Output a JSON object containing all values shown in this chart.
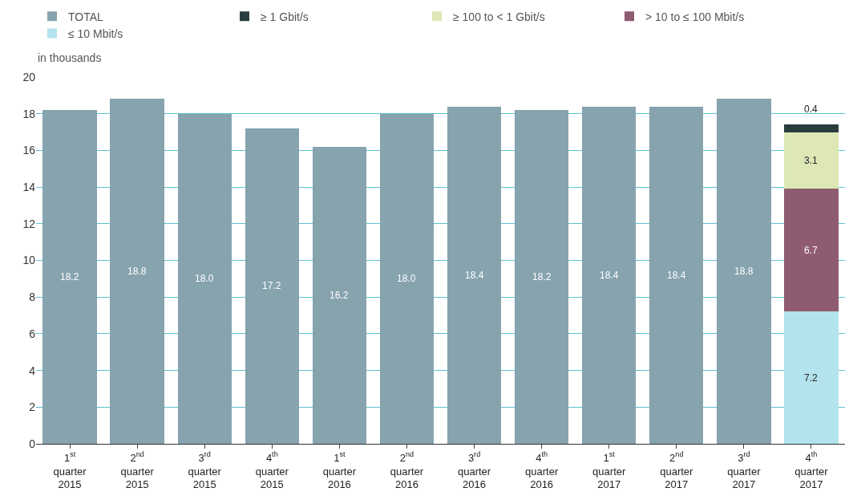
{
  "chart_data": {
    "type": "bar",
    "stacked": true,
    "ylabel": "in thousands",
    "categories": [
      "1$^{st}$\nquarter\n2015",
      "2$^{nd}$\nquarter\n2015",
      "3$^{rd}$\nquarter\n2015",
      "4$^{th}$\nquarter\n2015",
      "1$^{st}$\nquarter\n2016",
      "2$^{nd}$\nquarter\n2016",
      "3$^{rd}$\nquarter\n2016",
      "4$^{th}$\nquarter\n2016",
      "1$^{st}$\nquarter\n2017",
      "2$^{nd}$\nquarter\n2017",
      "3$^{rd}$\nquarter\n2017",
      "4$^{th}$\nquarter\n2017"
    ],
    "series": [
      {
        "name": "≤ 10 Mbit/s",
        "color": "#b3e3ec",
        "values": [
          null,
          null,
          null,
          null,
          null,
          null,
          null,
          null,
          null,
          null,
          null,
          7.2
        ],
        "value_labels": [
          null,
          null,
          null,
          null,
          null,
          null,
          null,
          null,
          null,
          null,
          null,
          "7.2"
        ]
      },
      {
        "name": "> 10 to ≤ 100 Mbit/s",
        "color": "#8e5b70",
        "values": [
          null,
          null,
          null,
          null,
          null,
          null,
          null,
          null,
          null,
          null,
          null,
          6.7
        ],
        "value_labels": [
          null,
          null,
          null,
          null,
          null,
          null,
          null,
          null,
          null,
          null,
          null,
          "6.7"
        ]
      },
      {
        "name": "≥ 100 to < 1 Gbit/s",
        "color": "#dde8b6",
        "values": [
          null,
          null,
          null,
          null,
          null,
          null,
          null,
          null,
          null,
          null,
          null,
          3.1
        ],
        "value_labels": [
          null,
          null,
          null,
          null,
          null,
          null,
          null,
          null,
          null,
          null,
          null,
          "3.1"
        ]
      },
      {
        "name": "≥ 1 Gbit/s",
        "color": "#2a3d3d",
        "values": [
          null,
          null,
          null,
          null,
          null,
          null,
          null,
          null,
          null,
          null,
          null,
          0.4
        ],
        "value_labels": [
          null,
          null,
          null,
          null,
          null,
          null,
          null,
          null,
          null,
          null,
          null,
          "0.4"
        ]
      },
      {
        "name": "TOTAL",
        "color": "#86a3ae",
        "values": [
          18.2,
          18.8,
          18.0,
          17.2,
          16.2,
          18.0,
          18.4,
          18.2,
          18.4,
          18.4,
          18.8,
          null
        ],
        "value_labels": [
          "18.2",
          "18.8",
          "18.0",
          "17.2",
          "16.2",
          "18.0",
          "18.4",
          "18.2",
          "18.4",
          "18.4",
          "18.8",
          null
        ]
      }
    ],
    "ylim": [
      0,
      20
    ],
    "yticks": [
      0,
      2,
      4,
      6,
      8,
      10,
      12,
      14,
      16,
      18,
      20
    ],
    "grid": "y",
    "legend": "top left"
  }
}
